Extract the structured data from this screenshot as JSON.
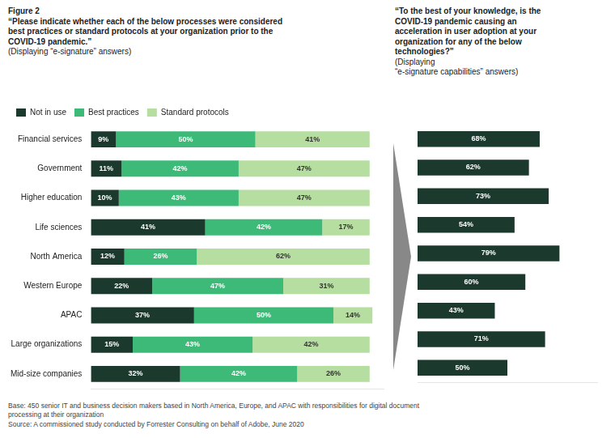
{
  "title": "Figure 2",
  "annotations": [
    "Base: 450 senior IT and business decision makers based in North America, Europe, and APAC with responsibilities for digital document",
    "processing at their organization",
    "Source: A commissioned study conducted by Forrester Consulting on behalf of Adobe, June 2020"
  ],
  "chart_data": [
    {
      "type": "bar",
      "orientation": "horizontal",
      "stacked": true,
      "title": [
        "“Please indicate whether each of the below processes were considered",
        "best practices or standard protocols at your organization prior to the",
        "COVID-19 pandemic.”"
      ],
      "subtitle": "(Displaying “e-signature” answers)",
      "categories": [
        "Financial services",
        "Government",
        "Higher education",
        "Life sciences",
        "North America",
        "Western Europe",
        "APAC",
        "Large organizations",
        "Mid-size companies"
      ],
      "series": [
        {
          "name": "Not in use",
          "color": "#1b3a2d",
          "values": [
            9,
            11,
            10,
            41,
            12,
            22,
            37,
            15,
            32
          ],
          "value_labels": [
            "9%",
            "11%",
            "10%",
            "41%",
            "12%",
            "22%",
            "37%",
            "15%",
            "32%"
          ]
        },
        {
          "name": "Best practices",
          "color": "#3dba78",
          "values": [
            50,
            42,
            43,
            42,
            26,
            47,
            50,
            43,
            42
          ],
          "value_labels": [
            "50%",
            "42%",
            "43%",
            "42%",
            "26%",
            "47%",
            "50%",
            "43%",
            "42%"
          ]
        },
        {
          "name": "Standard protocols",
          "color": "#b5dea0",
          "values": [
            41,
            47,
            47,
            17,
            62,
            31,
            14,
            42,
            26
          ],
          "value_labels": [
            "41%",
            "47%",
            "47%",
            "17%",
            "62%",
            "31%",
            "14%",
            "42%",
            "26%"
          ]
        }
      ],
      "xlim": [
        0,
        105
      ],
      "grid": false,
      "legend": "top",
      "data_labels": true,
      "tick_labels": "y"
    },
    {
      "type": "bar",
      "orientation": "horizontal",
      "title": [
        "“To the best of your knowledge, is the",
        "COVID-19 pandemic causing an",
        "acceleration in user adoption at your",
        "organization for any of the below",
        "technologies?”"
      ],
      "subtitle": [
        "(Displaying",
        "“e-signature capabilities” answers)"
      ],
      "categories": [
        "Financial services",
        "Government",
        "Higher education",
        "Life sciences",
        "North America",
        "Western Europe",
        "APAC",
        "Large organizations",
        "Mid-size companies"
      ],
      "values": [
        68,
        62,
        73,
        54,
        79,
        60,
        43,
        71,
        50
      ],
      "value_labels": [
        "68%",
        "62%",
        "73%",
        "54%",
        "79%",
        "60%",
        "43%",
        "71%",
        "50%"
      ],
      "color": "#1b3a2d",
      "xlim": [
        0,
        100
      ],
      "grid": false,
      "data_labels": true,
      "tick_labels": false
    }
  ]
}
